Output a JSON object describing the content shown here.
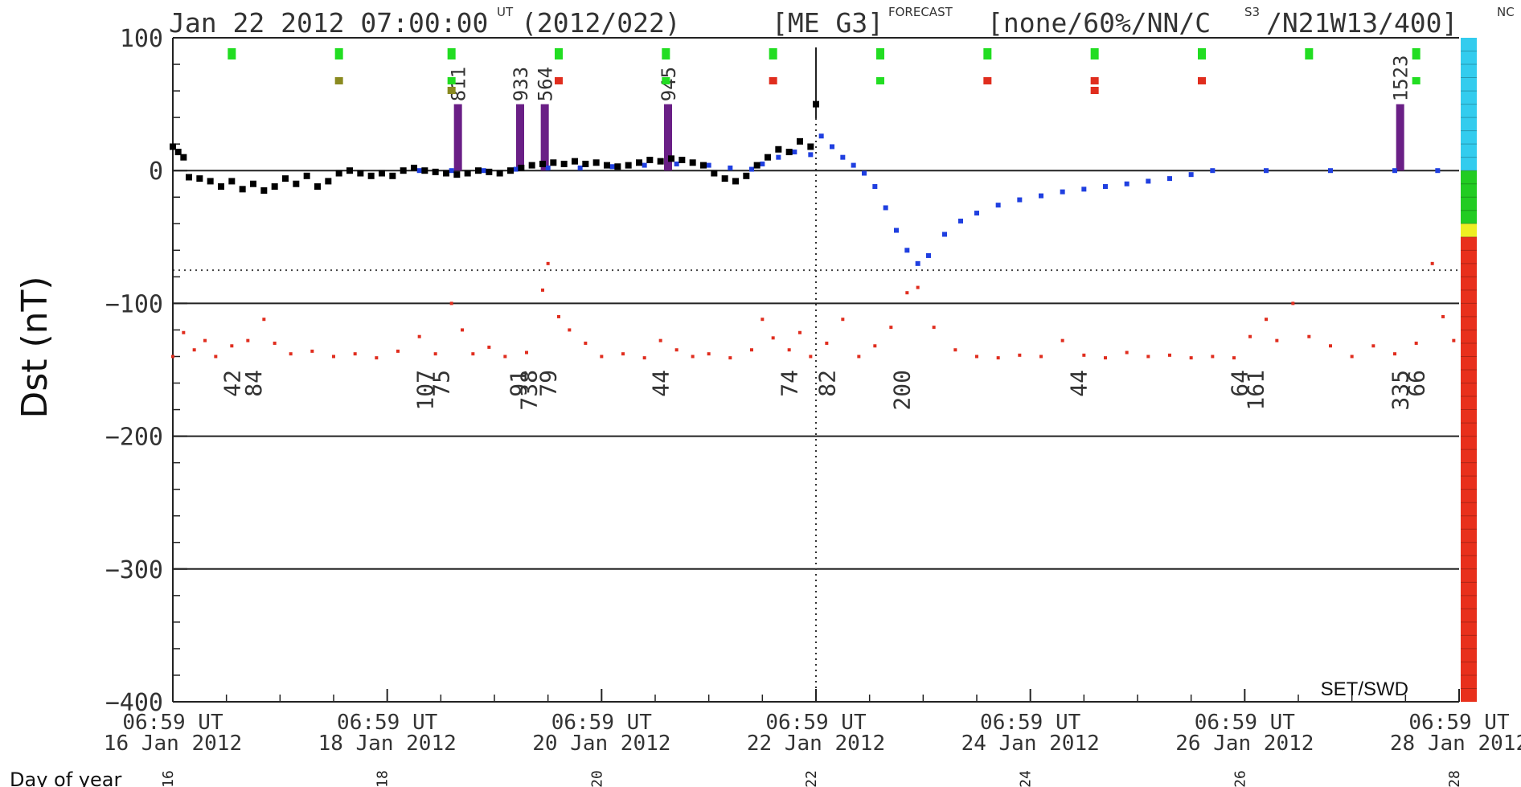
{
  "header": {
    "date_text": "Jan 22 2012 07:00:00",
    "ut_sup": "UT",
    "doy_text": "(2012/022)",
    "model_text": "[ME G3]",
    "forecast_sup": "FORECAST",
    "params_text": "[none/60%/NN/C",
    "c_sup": "S3",
    "params_text2": "/N21W13/400]",
    "trail_sup": "NC"
  },
  "source_label": "SET/SWD",
  "doy_axis_label": "Day of year",
  "colors": {
    "observed": "#000000",
    "forecast": "#1f3fe0",
    "lower_trace": "#e02d1e",
    "event_bar": "#6a1f86",
    "marker_green": "#22dd22",
    "marker_red": "#e02d1e",
    "marker_olive": "#8a8a20",
    "scale_cyan": "#33ccee",
    "scale_green": "#22cc22",
    "scale_yellow": "#eeee22",
    "scale_red": "#e8301c"
  },
  "chart_data": {
    "type": "scatter",
    "title": "",
    "xlabel": "",
    "ylabel": "Dst (nT)",
    "xlim": [
      0,
      12
    ],
    "ylim": [
      -400,
      100
    ],
    "x_unit": "days since 06:59 UT 16 Jan 2012",
    "yticks": [
      {
        "value": 100,
        "label": "100"
      },
      {
        "value": 0,
        "label": "0"
      },
      {
        "value": -100,
        "label": "−100"
      },
      {
        "value": -200,
        "label": "−200"
      },
      {
        "value": -300,
        "label": "−300"
      },
      {
        "value": -400,
        "label": "−400"
      }
    ],
    "hlines_solid": [
      0,
      -100,
      -200,
      -300
    ],
    "hline_dotted": -75,
    "now_line_x": 6,
    "xticks": [
      {
        "x": 0,
        "time": "06:59 UT",
        "date": "16 Jan 2012",
        "doy": "16"
      },
      {
        "x": 2,
        "time": "06:59 UT",
        "date": "18 Jan 2012",
        "doy": "18"
      },
      {
        "x": 4,
        "time": "06:59 UT",
        "date": "20 Jan 2012",
        "doy": "20"
      },
      {
        "x": 6,
        "time": "06:59 UT",
        "date": "22 Jan 2012",
        "doy": "22"
      },
      {
        "x": 8,
        "time": "06:59 UT",
        "date": "24 Jan 2012",
        "doy": "24"
      },
      {
        "x": 10,
        "time": "06:59 UT",
        "date": "26 Jan 2012",
        "doy": "26"
      },
      {
        "x": 12,
        "time": "06:59 UT",
        "date": "28 Jan 2012",
        "doy": "28"
      }
    ],
    "series": [
      {
        "id": "observed",
        "points": [
          [
            0,
            18
          ],
          [
            0.05,
            14
          ],
          [
            0.1,
            10
          ],
          [
            0.15,
            -5
          ],
          [
            0.25,
            -6
          ],
          [
            0.35,
            -8
          ],
          [
            0.45,
            -12
          ],
          [
            0.55,
            -8
          ],
          [
            0.65,
            -14
          ],
          [
            0.75,
            -10
          ],
          [
            0.85,
            -15
          ],
          [
            0.95,
            -12
          ],
          [
            1.05,
            -6
          ],
          [
            1.15,
            -10
          ],
          [
            1.25,
            -4
          ],
          [
            1.35,
            -12
          ],
          [
            1.45,
            -8
          ],
          [
            1.55,
            -2
          ],
          [
            1.65,
            0
          ],
          [
            1.75,
            -2
          ],
          [
            1.85,
            -4
          ],
          [
            1.95,
            -2
          ],
          [
            2.05,
            -4
          ],
          [
            2.15,
            0
          ],
          [
            2.25,
            2
          ],
          [
            2.35,
            0
          ],
          [
            2.45,
            -1
          ],
          [
            2.55,
            -2
          ],
          [
            2.65,
            -3
          ],
          [
            2.75,
            -2
          ],
          [
            2.85,
            0
          ],
          [
            2.95,
            -1
          ],
          [
            3.05,
            -2
          ],
          [
            3.15,
            0
          ],
          [
            3.25,
            2
          ],
          [
            3.35,
            4
          ],
          [
            3.45,
            5
          ],
          [
            3.55,
            6
          ],
          [
            3.65,
            5
          ],
          [
            3.75,
            7
          ],
          [
            3.85,
            5
          ],
          [
            3.95,
            6
          ],
          [
            4.05,
            4
          ],
          [
            4.15,
            3
          ],
          [
            4.25,
            4
          ],
          [
            4.35,
            6
          ],
          [
            4.45,
            8
          ],
          [
            4.55,
            7
          ],
          [
            4.65,
            9
          ],
          [
            4.75,
            8
          ],
          [
            4.85,
            6
          ],
          [
            4.95,
            4
          ],
          [
            5.05,
            -2
          ],
          [
            5.15,
            -6
          ],
          [
            5.25,
            -8
          ],
          [
            5.35,
            -4
          ],
          [
            5.45,
            4
          ],
          [
            5.55,
            10
          ],
          [
            5.65,
            16
          ],
          [
            5.75,
            14
          ],
          [
            5.85,
            22
          ],
          [
            5.95,
            18
          ],
          [
            6.0,
            50
          ]
        ]
      },
      {
        "id": "forecast",
        "points": [
          [
            2.3,
            0
          ],
          [
            2.6,
            0
          ],
          [
            2.9,
            0
          ],
          [
            3.2,
            1
          ],
          [
            3.5,
            2
          ],
          [
            3.8,
            2
          ],
          [
            4.1,
            3
          ],
          [
            4.4,
            4
          ],
          [
            4.7,
            5
          ],
          [
            5.0,
            4
          ],
          [
            5.2,
            2
          ],
          [
            5.4,
            1
          ],
          [
            5.5,
            5
          ],
          [
            5.65,
            10
          ],
          [
            5.8,
            14
          ],
          [
            5.95,
            12
          ],
          [
            6.05,
            26
          ],
          [
            6.15,
            18
          ],
          [
            6.25,
            10
          ],
          [
            6.35,
            4
          ],
          [
            6.45,
            -2
          ],
          [
            6.55,
            -12
          ],
          [
            6.65,
            -28
          ],
          [
            6.75,
            -45
          ],
          [
            6.85,
            -60
          ],
          [
            6.95,
            -70
          ],
          [
            7.05,
            -64
          ],
          [
            7.2,
            -48
          ],
          [
            7.35,
            -38
          ],
          [
            7.5,
            -32
          ],
          [
            7.7,
            -26
          ],
          [
            7.9,
            -22
          ],
          [
            8.1,
            -19
          ],
          [
            8.3,
            -16
          ],
          [
            8.5,
            -14
          ],
          [
            8.7,
            -12
          ],
          [
            8.9,
            -10
          ],
          [
            9.1,
            -8
          ],
          [
            9.3,
            -6
          ],
          [
            9.5,
            -3
          ],
          [
            9.7,
            0
          ],
          [
            10.2,
            0
          ],
          [
            10.8,
            0
          ],
          [
            11.4,
            0
          ],
          [
            11.8,
            0
          ]
        ]
      },
      {
        "id": "lower_trace",
        "points": [
          [
            0,
            -140
          ],
          [
            0.1,
            -122
          ],
          [
            0.2,
            -135
          ],
          [
            0.3,
            -128
          ],
          [
            0.4,
            -140
          ],
          [
            0.55,
            -132
          ],
          [
            0.7,
            -128
          ],
          [
            0.85,
            -112
          ],
          [
            0.95,
            -130
          ],
          [
            1.1,
            -138
          ],
          [
            1.3,
            -136
          ],
          [
            1.5,
            -140
          ],
          [
            1.7,
            -138
          ],
          [
            1.9,
            -141
          ],
          [
            2.1,
            -136
          ],
          [
            2.3,
            -125
          ],
          [
            2.45,
            -138
          ],
          [
            2.6,
            -100
          ],
          [
            2.7,
            -120
          ],
          [
            2.8,
            -138
          ],
          [
            2.95,
            -133
          ],
          [
            3.1,
            -140
          ],
          [
            3.3,
            -137
          ],
          [
            3.45,
            -90
          ],
          [
            3.5,
            -70
          ],
          [
            3.6,
            -110
          ],
          [
            3.7,
            -120
          ],
          [
            3.85,
            -130
          ],
          [
            4.0,
            -140
          ],
          [
            4.2,
            -138
          ],
          [
            4.4,
            -141
          ],
          [
            4.55,
            -128
          ],
          [
            4.7,
            -135
          ],
          [
            4.85,
            -140
          ],
          [
            5.0,
            -138
          ],
          [
            5.2,
            -141
          ],
          [
            5.4,
            -135
          ],
          [
            5.5,
            -112
          ],
          [
            5.6,
            -126
          ],
          [
            5.75,
            -135
          ],
          [
            5.85,
            -122
          ],
          [
            5.95,
            -140
          ],
          [
            6.1,
            -130
          ],
          [
            6.25,
            -112
          ],
          [
            6.4,
            -140
          ],
          [
            6.55,
            -132
          ],
          [
            6.7,
            -118
          ],
          [
            6.85,
            -92
          ],
          [
            6.95,
            -88
          ],
          [
            7.1,
            -118
          ],
          [
            7.3,
            -135
          ],
          [
            7.5,
            -140
          ],
          [
            7.7,
            -141
          ],
          [
            7.9,
            -139
          ],
          [
            8.1,
            -140
          ],
          [
            8.3,
            -128
          ],
          [
            8.5,
            -139
          ],
          [
            8.7,
            -141
          ],
          [
            8.9,
            -137
          ],
          [
            9.1,
            -140
          ],
          [
            9.3,
            -139
          ],
          [
            9.5,
            -141
          ],
          [
            9.7,
            -140
          ],
          [
            9.9,
            -141
          ],
          [
            10.05,
            -125
          ],
          [
            10.2,
            -112
          ],
          [
            10.3,
            -128
          ],
          [
            10.45,
            -100
          ],
          [
            10.6,
            -125
          ],
          [
            10.8,
            -132
          ],
          [
            11.0,
            -140
          ],
          [
            11.2,
            -132
          ],
          [
            11.4,
            -138
          ],
          [
            11.6,
            -130
          ],
          [
            11.75,
            -70
          ],
          [
            11.85,
            -110
          ],
          [
            11.95,
            -128
          ]
        ]
      }
    ],
    "event_bars": [
      {
        "x": 2.66,
        "label": "811"
      },
      {
        "x": 3.24,
        "label": "933"
      },
      {
        "x": 3.47,
        "label": "564"
      },
      {
        "x": 4.62,
        "label": "945"
      },
      {
        "x": 11.45,
        "label": "1523"
      }
    ],
    "bottom_labels": [
      {
        "x": 0.55,
        "label": "42"
      },
      {
        "x": 0.75,
        "label": "84"
      },
      {
        "x": 2.35,
        "label": "107"
      },
      {
        "x": 2.5,
        "label": "75"
      },
      {
        "x": 3.22,
        "label": "91"
      },
      {
        "x": 3.32,
        "label": "738"
      },
      {
        "x": 3.5,
        "label": "79"
      },
      {
        "x": 4.55,
        "label": "44"
      },
      {
        "x": 5.75,
        "label": "74"
      },
      {
        "x": 6.1,
        "label": "82"
      },
      {
        "x": 6.8,
        "label": "200"
      },
      {
        "x": 8.45,
        "label": "44"
      },
      {
        "x": 9.95,
        "label": "64"
      },
      {
        "x": 10.1,
        "label": "161"
      },
      {
        "x": 11.45,
        "label": "335"
      },
      {
        "x": 11.6,
        "label": "66"
      }
    ],
    "top_markers": [
      {
        "x": 0.55,
        "colors": [
          "green"
        ]
      },
      {
        "x": 1.55,
        "colors": [
          "green",
          "olive"
        ]
      },
      {
        "x": 2.6,
        "colors": [
          "green",
          "green",
          "olive"
        ]
      },
      {
        "x": 3.6,
        "colors": [
          "green",
          "red"
        ]
      },
      {
        "x": 4.6,
        "colors": [
          "green",
          "green"
        ]
      },
      {
        "x": 5.6,
        "colors": [
          "green",
          "red"
        ]
      },
      {
        "x": 6.6,
        "colors": [
          "green",
          "green"
        ]
      },
      {
        "x": 7.6,
        "colors": [
          "green",
          "red"
        ]
      },
      {
        "x": 8.6,
        "colors": [
          "green",
          "red",
          "red"
        ]
      },
      {
        "x": 9.6,
        "colors": [
          "green",
          "red"
        ]
      },
      {
        "x": 10.6,
        "colors": [
          "green"
        ]
      },
      {
        "x": 11.6,
        "colors": [
          "green",
          "green"
        ]
      }
    ],
    "scale_bar": [
      {
        "from": 100,
        "to": 0,
        "color": "cyan"
      },
      {
        "from": 0,
        "to": -40,
        "color": "green"
      },
      {
        "from": -40,
        "to": -50,
        "color": "yellow"
      },
      {
        "from": -50,
        "to": -400,
        "color": "red"
      }
    ],
    "grid": false,
    "legend": "none"
  }
}
